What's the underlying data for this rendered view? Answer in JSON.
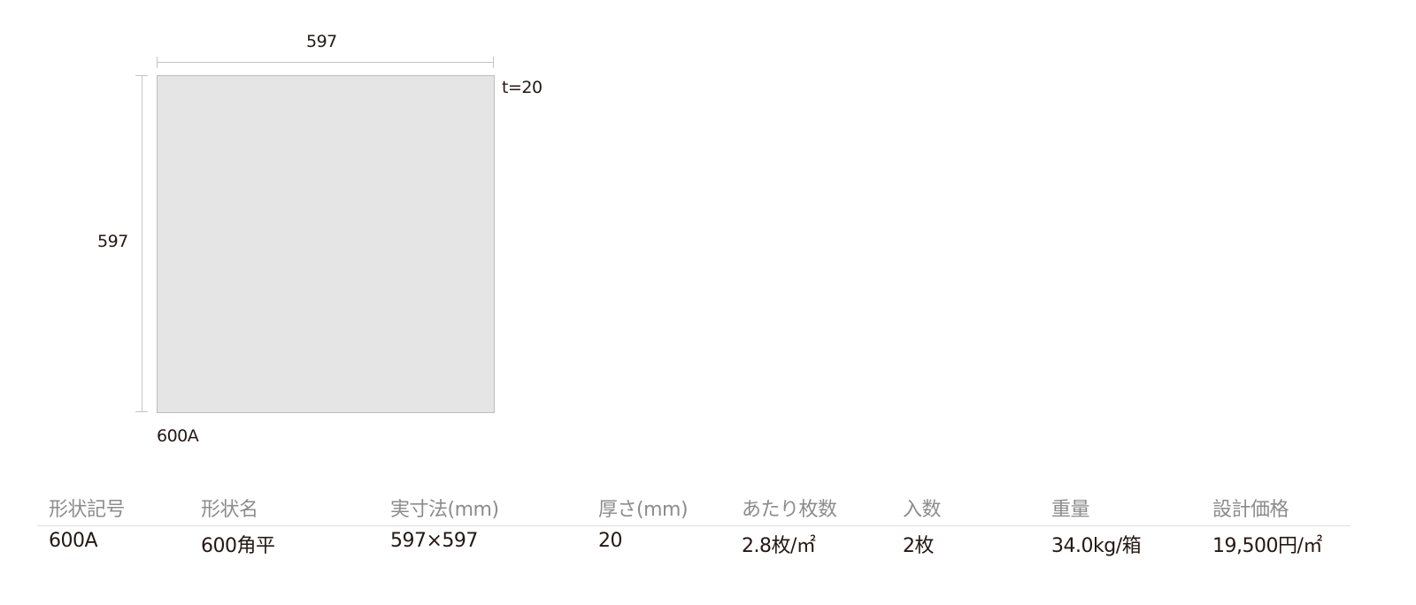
{
  "drawing": {
    "width_label": "597",
    "height_label": "597",
    "thickness_label": "t=20",
    "shape_code_label": "600A",
    "tile_color": "#e5e5e5"
  },
  "spec_table": {
    "headers": [
      "形状記号",
      "形状名",
      "実寸法(mm)",
      "厚さ(mm)",
      "あたり枚数",
      "入数",
      "重量",
      "設計価格"
    ],
    "rows": [
      [
        "600A",
        "600角平",
        "597×597",
        "20",
        "2.8枚/㎡",
        "2枚",
        "34.0kg/箱",
        "19,500円/㎡"
      ]
    ]
  }
}
